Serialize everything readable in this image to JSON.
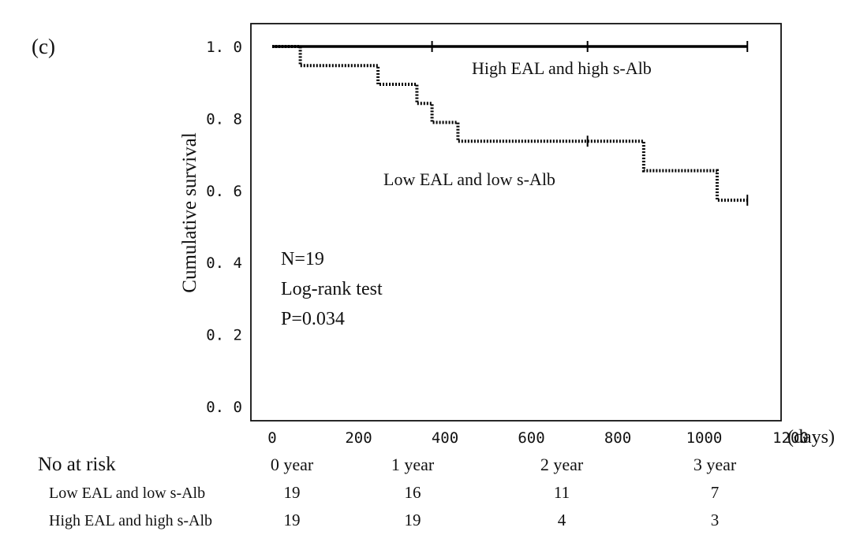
{
  "panel_label": "(c)",
  "chart_data": {
    "type": "line",
    "subtype": "kaplan-meier",
    "title": "",
    "xlabel": "(days)",
    "ylabel": "Cumulative survival",
    "xlim": [
      0,
      1200
    ],
    "ylim": [
      0,
      1.0
    ],
    "x_ticks": [
      0,
      200,
      400,
      600,
      800,
      1000,
      1200
    ],
    "y_ticks": [
      0,
      0.2,
      0.4,
      0.6,
      0.8,
      1.0
    ],
    "y_tick_labels": [
      "0. 0",
      "0. 2",
      "0. 4",
      "0. 6",
      "0. 8",
      "1. 0"
    ],
    "grid": false,
    "series": [
      {
        "name": "High EAL and high s-Alb",
        "style": "solid",
        "color": "#000000",
        "steps": [
          [
            0,
            1.0
          ],
          [
            1100,
            1.0
          ]
        ],
        "censored": [
          [
            370,
            1.0
          ],
          [
            730,
            1.0
          ],
          [
            1100,
            1.0
          ]
        ]
      },
      {
        "name": "Low EAL and low s-Alb",
        "style": "dotted",
        "color": "#000000",
        "steps": [
          [
            0,
            1.0
          ],
          [
            65,
            0.947
          ],
          [
            245,
            0.895
          ],
          [
            335,
            0.842
          ],
          [
            370,
            0.789
          ],
          [
            430,
            0.737
          ],
          [
            860,
            0.655
          ],
          [
            1030,
            0.573
          ],
          [
            1100,
            0.573
          ]
        ],
        "censored": [
          [
            730,
            0.737
          ],
          [
            1100,
            0.573
          ]
        ]
      }
    ],
    "annotations": [
      {
        "id": "high",
        "text": "High EAL and high s-Alb"
      },
      {
        "id": "low",
        "text": "Low EAL and low s-Alb"
      },
      {
        "id": "n",
        "text": "N=19"
      },
      {
        "id": "test",
        "text": "Log-rank test"
      },
      {
        "id": "p",
        "text": "P=0.034"
      }
    ]
  },
  "risk_table": {
    "title": "No at risk",
    "columns": [
      "0 year",
      "1 year",
      "2 year",
      "3 year"
    ],
    "rows": [
      {
        "label": "Low EAL and low s-Alb",
        "values": [
          "19",
          "16",
          "11",
          "7"
        ]
      },
      {
        "label": "High EAL and high s-Alb",
        "values": [
          "19",
          "19",
          "4",
          "3"
        ]
      }
    ]
  }
}
